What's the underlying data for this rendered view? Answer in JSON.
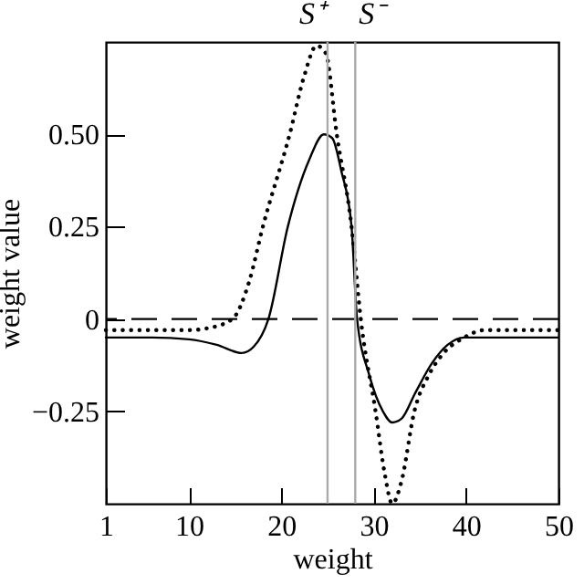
{
  "chart_data": {
    "type": "line",
    "xlabel": "weight",
    "ylabel": "weight value",
    "xlim": [
      1,
      50
    ],
    "xticks": [
      1,
      10,
      20,
      30,
      40,
      50
    ],
    "ylim": [
      -0.5,
      0.75
    ],
    "yticks": [
      {
        "value": -0.25,
        "label": "−0.25"
      },
      0,
      {
        "value": 0.25,
        "label": "0.25"
      },
      {
        "value": 0.5,
        "label": "0.50"
      }
    ],
    "grid": false,
    "series": [
      {
        "color": "#000000",
        "line_style": "solid",
        "x": [
          1,
          6,
          10,
          13,
          15.7,
          17,
          18.6,
          20.7,
          23,
          24.6,
          25.5,
          26.5,
          27.6,
          28.2,
          29.5,
          31,
          32,
          33,
          34.5,
          36.3,
          38,
          39.8,
          42,
          46,
          50
        ],
        "values": [
          -0.05,
          -0.05,
          -0.055,
          -0.07,
          -0.092,
          -0.075,
          0,
          0.25,
          0.43,
          0.5,
          0.49,
          0.4,
          0.25,
          0,
          -0.15,
          -0.25,
          -0.28,
          -0.27,
          -0.2,
          -0.12,
          -0.07,
          -0.05,
          -0.05,
          -0.05,
          -0.05
        ]
      },
      {
        "color": "#000000",
        "line_style": "dotted",
        "x": [
          1,
          6,
          10,
          12,
          14.7,
          16.5,
          18,
          20.9,
          22.5,
          23.8,
          24.8,
          26,
          27.6,
          28.6,
          30.2,
          31.2,
          32,
          33,
          34.4,
          36,
          37.3,
          39.8,
          42,
          46,
          50
        ],
        "values": [
          -0.03,
          -0.03,
          -0.03,
          -0.025,
          0,
          0.1,
          0.25,
          0.5,
          0.66,
          0.74,
          0.72,
          0.5,
          0.25,
          0,
          -0.25,
          -0.42,
          -0.5,
          -0.44,
          -0.25,
          -0.15,
          -0.1,
          -0.05,
          -0.03,
          -0.03,
          -0.03
        ]
      }
    ],
    "ref_lines": [
      {
        "axis": "y",
        "value": 0,
        "color": "#000000",
        "line_style": "dashed"
      },
      {
        "axis": "x",
        "value": 25,
        "label": "S⁺",
        "color": "#aaaaaa",
        "line_style": "solid"
      },
      {
        "axis": "x",
        "value": 28,
        "label": "S⁻",
        "color": "#aaaaaa",
        "line_style": "solid"
      }
    ]
  }
}
